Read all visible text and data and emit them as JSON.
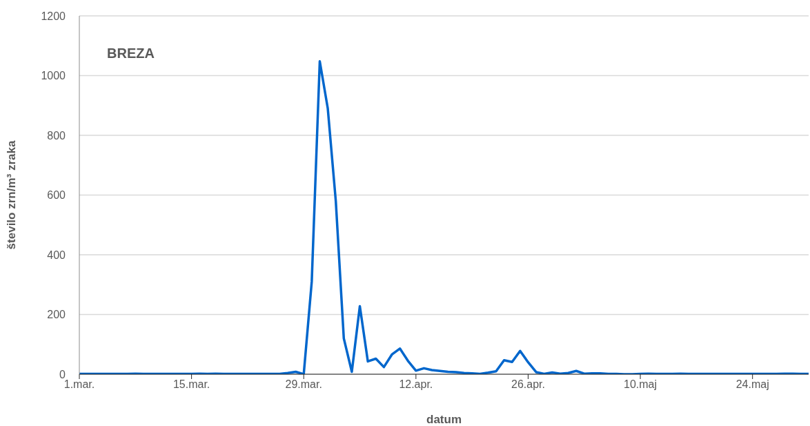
{
  "chart_data": {
    "type": "line",
    "title": "BREZA",
    "xlabel": "datum",
    "ylabel": "število zrn/m³ zraka",
    "x": [
      "--03-01",
      "--03-02",
      "--03-03",
      "--03-04",
      "--03-05",
      "--03-06",
      "--03-07",
      "--03-08",
      "--03-09",
      "--03-10",
      "--03-11",
      "--03-12",
      "--03-13",
      "--03-14",
      "--03-15",
      "--03-16",
      "--03-17",
      "--03-18",
      "--03-19",
      "--03-20",
      "--03-21",
      "--03-22",
      "--03-23",
      "--03-24",
      "--03-25",
      "--03-26",
      "--03-27",
      "--03-28",
      "--03-29",
      "--03-30",
      "--03-31",
      "--04-01",
      "--04-02",
      "--04-03",
      "--04-04",
      "--04-05",
      "--04-06",
      "--04-07",
      "--04-08",
      "--04-09",
      "--04-10",
      "--04-11",
      "--04-12",
      "--04-13",
      "--04-14",
      "--04-15",
      "--04-16",
      "--04-17",
      "--04-18",
      "--04-19",
      "--04-20",
      "--04-21",
      "--04-22",
      "--04-23",
      "--04-24",
      "--04-25",
      "--04-26",
      "--04-27",
      "--04-28",
      "--04-29",
      "--04-30",
      "--05-01",
      "--05-02",
      "--05-03",
      "--05-04",
      "--05-05",
      "--05-06",
      "--05-07",
      "--05-08",
      "--05-09",
      "--05-10",
      "--05-11",
      "--05-12",
      "--05-13",
      "--05-14",
      "--05-15",
      "--05-16",
      "--05-17",
      "--05-18",
      "--05-19",
      "--05-20",
      "--05-21",
      "--05-22",
      "--05-23",
      "--05-24",
      "--05-25",
      "--05-26",
      "--05-27",
      "--05-28",
      "--05-29",
      "--05-30",
      "--05-31"
    ],
    "series": [
      {
        "color": "#0066cc",
        "values": [
          1,
          1,
          1,
          1,
          1,
          1,
          1,
          2,
          1,
          1,
          1,
          1,
          1,
          1,
          1,
          2,
          1,
          2,
          1,
          1,
          1,
          1,
          1,
          1,
          1,
          1,
          4,
          8,
          0,
          310,
          1048,
          890,
          580,
          120,
          8,
          228,
          43,
          52,
          24,
          66,
          86,
          45,
          12,
          20,
          14,
          11,
          8,
          7,
          4,
          3,
          1,
          5,
          10,
          47,
          41,
          78,
          40,
          7,
          1,
          6,
          2,
          4,
          11,
          2,
          3,
          3,
          1,
          1,
          0,
          0,
          1,
          2,
          1,
          1,
          1,
          2,
          1,
          1,
          1,
          1,
          1,
          1,
          1,
          1,
          1,
          1,
          1,
          1,
          2,
          2,
          1,
          1
        ]
      }
    ],
    "xlim": [
      "--03-01",
      "--05-31"
    ],
    "xticks": [
      {
        "value": "--03-01",
        "label": "1.mar."
      },
      {
        "value": "--03-15",
        "label": "15.mar."
      },
      {
        "value": "--03-29",
        "label": "29.mar."
      },
      {
        "value": "--04-12",
        "label": "12.apr."
      },
      {
        "value": "--04-26",
        "label": "26.apr."
      },
      {
        "value": "--05-10",
        "label": "10.maj"
      },
      {
        "value": "--05-24",
        "label": "24.maj"
      }
    ],
    "ylim": [
      0,
      1200
    ],
    "yticks": [
      0,
      200,
      400,
      600,
      800,
      1000,
      1200
    ],
    "grid": "y",
    "legend": false,
    "marker": "none",
    "line_style": "solid"
  }
}
